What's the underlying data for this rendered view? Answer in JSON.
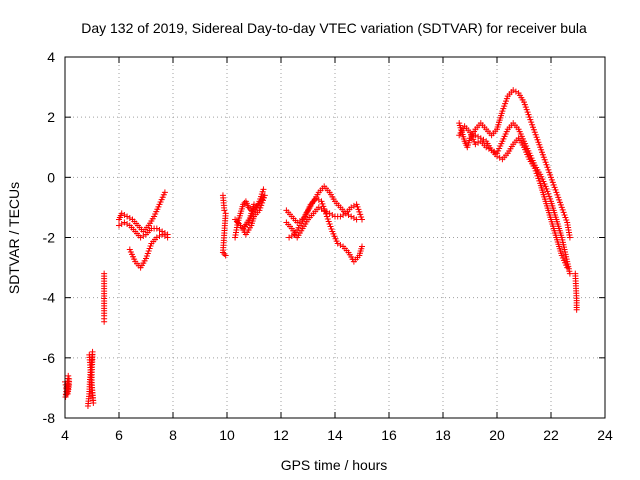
{
  "chart_data": {
    "type": "scatter",
    "title": "Day 132 of 2019, Sidereal Day-to-day VTEC variation (SDTVAR) for receiver bula",
    "xlabel": "GPS time / hours",
    "ylabel": "SDTVAR / TECUs",
    "xlim": [
      4,
      24
    ],
    "ylim": [
      -8,
      4
    ],
    "xticks": [
      4,
      6,
      8,
      10,
      12,
      14,
      16,
      18,
      20,
      22,
      24
    ],
    "yticks": [
      -8,
      -6,
      -4,
      -2,
      0,
      2,
      4
    ],
    "grid": true,
    "marker": "+",
    "series": [
      {
        "name": "SDTVAR",
        "color": "#ff0000",
        "segments": [
          [
            [
              4.0,
              -6.8
            ],
            [
              4.05,
              -7.0
            ],
            [
              4.1,
              -7.2
            ],
            [
              4.15,
              -6.9
            ],
            [
              4.15,
              -6.7
            ],
            [
              4.1,
              -7.1
            ],
            [
              4.02,
              -7.3
            ],
            [
              4.12,
              -6.6
            ]
          ],
          [
            [
              4.85,
              -7.6
            ],
            [
              4.9,
              -7.2
            ],
            [
              4.92,
              -6.8
            ],
            [
              4.95,
              -6.4
            ],
            [
              5.0,
              -6.0
            ],
            [
              5.02,
              -5.8
            ],
            [
              4.98,
              -6.9
            ],
            [
              5.05,
              -7.5
            ],
            [
              4.9,
              -5.9
            ]
          ],
          [
            [
              5.45,
              -3.2
            ],
            [
              5.45,
              -3.7
            ],
            [
              5.45,
              -4.6
            ],
            [
              5.45,
              -4.8
            ]
          ],
          [
            [
              6.0,
              -1.4
            ],
            [
              6.1,
              -1.2
            ],
            [
              6.3,
              -1.3
            ],
            [
              6.5,
              -1.4
            ],
            [
              6.7,
              -1.6
            ],
            [
              6.9,
              -1.8
            ],
            [
              7.1,
              -1.6
            ],
            [
              7.3,
              -1.3
            ],
            [
              7.5,
              -0.9
            ],
            [
              7.7,
              -0.5
            ]
          ],
          [
            [
              6.0,
              -1.6
            ],
            [
              6.2,
              -1.5
            ],
            [
              6.4,
              -1.6
            ],
            [
              6.6,
              -1.8
            ],
            [
              6.8,
              -2.0
            ],
            [
              7.0,
              -1.9
            ],
            [
              7.2,
              -1.7
            ],
            [
              7.4,
              -1.7
            ],
            [
              7.6,
              -1.8
            ],
            [
              7.8,
              -1.9
            ]
          ],
          [
            [
              6.4,
              -2.4
            ],
            [
              6.6,
              -2.8
            ],
            [
              6.8,
              -3.0
            ],
            [
              7.0,
              -2.7
            ],
            [
              7.2,
              -2.2
            ],
            [
              7.4,
              -2.0
            ],
            [
              7.6,
              -1.9
            ],
            [
              7.8,
              -2.0
            ]
          ],
          [
            [
              9.85,
              -0.6
            ],
            [
              9.9,
              -1.1
            ],
            [
              9.95,
              -1.2
            ],
            [
              9.85,
              -2.5
            ],
            [
              9.95,
              -2.6
            ]
          ],
          [
            [
              10.3,
              -2.0
            ],
            [
              10.4,
              -1.5
            ],
            [
              10.5,
              -1.2
            ],
            [
              10.6,
              -0.9
            ],
            [
              10.7,
              -0.8
            ],
            [
              10.8,
              -1.0
            ],
            [
              10.9,
              -1.1
            ],
            [
              11.1,
              -1.0
            ],
            [
              11.2,
              -0.8
            ],
            [
              11.35,
              -0.4
            ]
          ],
          [
            [
              10.3,
              -1.4
            ],
            [
              10.5,
              -1.6
            ],
            [
              10.7,
              -1.9
            ],
            [
              10.9,
              -1.6
            ],
            [
              11.0,
              -1.3
            ],
            [
              11.2,
              -1.1
            ],
            [
              11.4,
              -0.6
            ],
            [
              10.6,
              -1.7
            ],
            [
              10.8,
              -1.5
            ],
            [
              11.0,
              -0.9
            ]
          ],
          [
            [
              12.2,
              -1.1
            ],
            [
              12.4,
              -1.3
            ],
            [
              12.6,
              -1.5
            ],
            [
              12.8,
              -1.4
            ],
            [
              13.0,
              -1.1
            ],
            [
              13.2,
              -0.8
            ],
            [
              13.4,
              -0.5
            ],
            [
              13.6,
              -0.3
            ],
            [
              13.8,
              -0.5
            ],
            [
              14.0,
              -0.8
            ],
            [
              14.2,
              -1.0
            ],
            [
              14.4,
              -1.2
            ],
            [
              14.6,
              -1.3
            ],
            [
              14.8,
              -1.4
            ]
          ],
          [
            [
              12.2,
              -1.5
            ],
            [
              12.4,
              -1.7
            ],
            [
              12.6,
              -2.0
            ],
            [
              12.8,
              -1.7
            ],
            [
              13.0,
              -1.4
            ],
            [
              13.2,
              -1.2
            ],
            [
              13.4,
              -1.0
            ],
            [
              13.6,
              -1.1
            ],
            [
              13.8,
              -1.2
            ],
            [
              14.0,
              -1.3
            ],
            [
              14.2,
              -1.3
            ],
            [
              14.4,
              -1.2
            ],
            [
              14.6,
              -1.0
            ],
            [
              14.8,
              -0.9
            ],
            [
              15.0,
              -1.4
            ]
          ],
          [
            [
              12.3,
              -2.0
            ],
            [
              12.5,
              -1.9
            ],
            [
              12.7,
              -1.6
            ],
            [
              12.9,
              -1.3
            ],
            [
              13.1,
              -0.9
            ],
            [
              13.3,
              -0.7
            ],
            [
              13.5,
              -0.8
            ],
            [
              13.7,
              -1.3
            ],
            [
              13.9,
              -1.8
            ],
            [
              14.1,
              -2.2
            ],
            [
              14.3,
              -2.3
            ],
            [
              14.5,
              -2.5
            ],
            [
              14.7,
              -2.8
            ],
            [
              14.9,
              -2.6
            ],
            [
              15.0,
              -2.3
            ]
          ],
          [
            [
              18.6,
              1.8
            ],
            [
              18.7,
              1.5
            ],
            [
              18.8,
              1.2
            ],
            [
              18.9,
              1.0
            ],
            [
              19.0,
              1.3
            ],
            [
              19.2,
              1.6
            ],
            [
              19.4,
              1.8
            ],
            [
              19.6,
              1.6
            ],
            [
              19.8,
              1.4
            ],
            [
              20.0,
              1.6
            ],
            [
              20.2,
              2.2
            ],
            [
              20.4,
              2.7
            ],
            [
              20.6,
              2.9
            ],
            [
              20.8,
              2.8
            ],
            [
              21.0,
              2.5
            ],
            [
              21.2,
              2.0
            ],
            [
              21.4,
              1.5
            ],
            [
              21.6,
              1.0
            ],
            [
              21.8,
              0.5
            ],
            [
              22.0,
              0.0
            ],
            [
              22.2,
              -0.5
            ],
            [
              22.4,
              -1.0
            ],
            [
              22.6,
              -1.5
            ],
            [
              22.7,
              -2.0
            ]
          ],
          [
            [
              18.6,
              1.4
            ],
            [
              18.8,
              1.7
            ],
            [
              19.0,
              1.5
            ],
            [
              19.2,
              1.1
            ],
            [
              19.4,
              1.2
            ],
            [
              19.6,
              1.0
            ],
            [
              19.8,
              0.9
            ],
            [
              20.0,
              0.8
            ],
            [
              20.2,
              1.2
            ],
            [
              20.4,
              1.6
            ],
            [
              20.6,
              1.8
            ],
            [
              20.8,
              1.6
            ],
            [
              21.0,
              1.2
            ],
            [
              21.2,
              0.8
            ],
            [
              21.4,
              0.4
            ],
            [
              21.6,
              0.1
            ],
            [
              21.8,
              -0.3
            ],
            [
              22.0,
              -0.8
            ],
            [
              22.2,
              -1.4
            ],
            [
              22.4,
              -2.0
            ],
            [
              22.6,
              -2.8
            ],
            [
              22.7,
              -3.2
            ]
          ],
          [
            [
              19.2,
              1.4
            ],
            [
              19.4,
              1.3
            ],
            [
              19.6,
              1.2
            ],
            [
              19.8,
              0.9
            ],
            [
              20.0,
              0.7
            ],
            [
              20.2,
              0.6
            ],
            [
              20.4,
              0.8
            ],
            [
              20.6,
              1.1
            ],
            [
              20.8,
              1.3
            ],
            [
              21.0,
              1.0
            ],
            [
              21.2,
              0.6
            ],
            [
              21.4,
              0.3
            ],
            [
              21.6,
              -0.2
            ],
            [
              21.8,
              -0.8
            ],
            [
              22.0,
              -1.4
            ],
            [
              22.2,
              -2.0
            ],
            [
              22.4,
              -2.6
            ],
            [
              22.6,
              -3.0
            ]
          ],
          [
            [
              22.9,
              -3.2
            ],
            [
              22.95,
              -4.1
            ],
            [
              22.95,
              -4.4
            ]
          ]
        ]
      }
    ]
  }
}
